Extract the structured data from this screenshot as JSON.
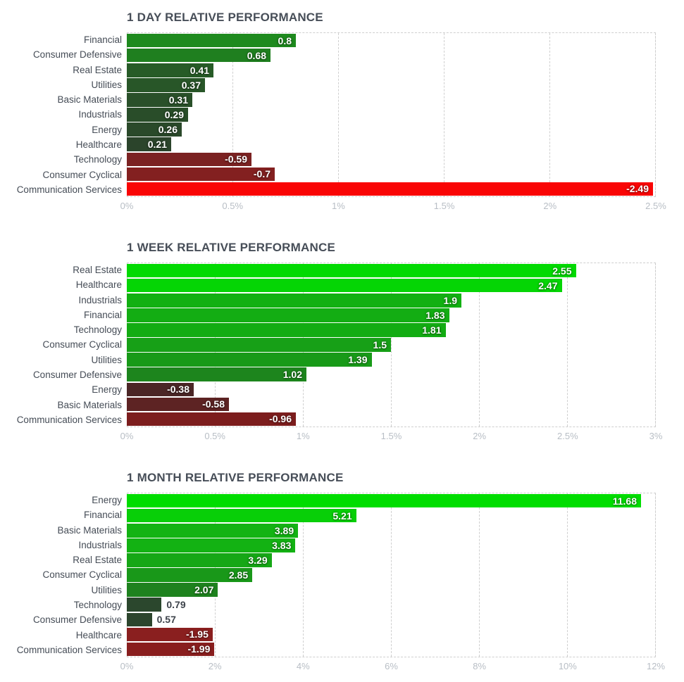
{
  "theme": {
    "title-color": "#474e58",
    "label-color": "#454c56",
    "axis-color": "#b8bec5",
    "grid-color": "#cfcfcf",
    "value-inside-color": "#ffffff",
    "value-outside-color": "#3d434b",
    "background": "#ffffff",
    "positive-bright": "#00dd00",
    "negative-bright": "#f90505"
  },
  "chart_data": [
    {
      "type": "bar",
      "orientation": "horizontal",
      "title": "1 DAY RELATIVE PERFORMANCE",
      "categories": [
        "Financial",
        "Consumer Defensive",
        "Real Estate",
        "Utilities",
        "Basic Materials",
        "Industrials",
        "Energy",
        "Healthcare",
        "Technology",
        "Consumer Cyclical",
        "Communication Services"
      ],
      "values": [
        0.8,
        0.68,
        0.41,
        0.37,
        0.31,
        0.29,
        0.26,
        0.21,
        -0.59,
        -0.7,
        -2.49
      ],
      "value_labels": [
        "0.8",
        "0.68",
        "0.41",
        "0.37",
        "0.31",
        "0.29",
        "0.26",
        "0.21",
        "-0.59",
        "-0.7",
        "-2.49"
      ],
      "bar_colors": [
        "#1e8a1e",
        "#1f7f1f",
        "#275b27",
        "#285628",
        "#295029",
        "#294d29",
        "#2a492a",
        "#2b442b",
        "#7b2222",
        "#832020",
        "#f90505"
      ],
      "x_tick_labels": [
        "0%",
        "0.5%",
        "1%",
        "1.5%",
        "2%",
        "2.5%"
      ],
      "xlim": [
        0,
        2.5
      ],
      "bar_length_basis": "absolute value",
      "grid": "vertical-dashed",
      "legend": "none"
    },
    {
      "type": "bar",
      "orientation": "horizontal",
      "title": "1 WEEK RELATIVE PERFORMANCE",
      "categories": [
        "Real Estate",
        "Healthcare",
        "Industrials",
        "Financial",
        "Technology",
        "Consumer Cyclical",
        "Utilities",
        "Consumer Defensive",
        "Energy",
        "Basic Materials",
        "Communication Services"
      ],
      "values": [
        2.55,
        2.47,
        1.9,
        1.83,
        1.81,
        1.5,
        1.39,
        1.02,
        -0.38,
        -0.58,
        -0.96
      ],
      "value_labels": [
        "2.55",
        "2.47",
        "1.9",
        "1.83",
        "1.81",
        "1.5",
        "1.39",
        "1.02",
        "-0.38",
        "-0.58",
        "-0.96"
      ],
      "bar_colors": [
        "#02da02",
        "#05d505",
        "#12b012",
        "#13ad13",
        "#13ac13",
        "#17a017",
        "#189a18",
        "#1d851d",
        "#4b2626",
        "#5d2323",
        "#7c1d1d"
      ],
      "x_tick_labels": [
        "0%",
        "0.5%",
        "1%",
        "1.5%",
        "2%",
        "2.5%",
        "3%"
      ],
      "xlim": [
        0,
        3
      ],
      "bar_length_basis": "absolute value",
      "grid": "vertical-dashed",
      "legend": "none"
    },
    {
      "type": "bar",
      "orientation": "horizontal",
      "title": "1 MONTH RELATIVE PERFORMANCE",
      "categories": [
        "Energy",
        "Financial",
        "Basic Materials",
        "Industrials",
        "Real Estate",
        "Consumer Cyclical",
        "Utilities",
        "Technology",
        "Consumer Defensive",
        "Healthcare",
        "Communication Services"
      ],
      "values": [
        11.68,
        5.21,
        3.89,
        3.83,
        3.29,
        2.85,
        2.07,
        0.79,
        0.57,
        -1.95,
        -1.99
      ],
      "value_labels": [
        "11.68",
        "5.21",
        "3.89",
        "3.83",
        "3.29",
        "2.85",
        "2.07",
        "0.79",
        "0.57",
        "-1.95",
        "-1.99"
      ],
      "bar_colors": [
        "#00dd00",
        "#08cf08",
        "#13b313",
        "#13b213",
        "#16a716",
        "#199819",
        "#1e821e",
        "#2b472d",
        "#2c452d",
        "#8a1f1f",
        "#891e1e"
      ],
      "x_tick_labels": [
        "0%",
        "2%",
        "4%",
        "6%",
        "8%",
        "10%",
        "12%"
      ],
      "xlim": [
        0,
        12
      ],
      "bar_length_basis": "absolute value",
      "grid": "vertical-dashed",
      "legend": "none"
    }
  ]
}
